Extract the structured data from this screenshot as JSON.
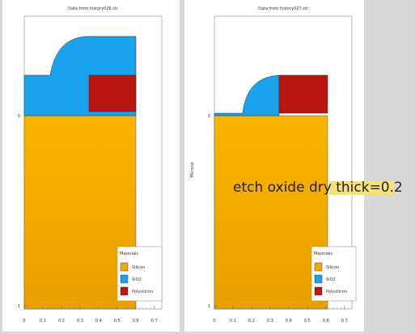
{
  "panels": [
    {
      "title": "Data from history026.str",
      "xticks": [
        "0",
        "0.1",
        "0.2",
        "0.3",
        "0.4",
        "0.5",
        "0.6",
        "0.7"
      ],
      "yticks": [
        "0",
        "1"
      ],
      "legend": {
        "title": "Materials",
        "items": [
          "Silicon",
          "SiO2",
          "Polysilicon"
        ]
      }
    },
    {
      "title": "Data from history027.str",
      "ylabel": "Microns",
      "xticks": [
        "0",
        "0.1",
        "0.2",
        "0.3",
        "0.4",
        "0.5",
        "0.6",
        "0.7"
      ],
      "yticks": [
        "0",
        "1"
      ],
      "legend": {
        "title": "Materials",
        "items": [
          "Silicon",
          "SiO2",
          "Polysilicon"
        ]
      }
    }
  ],
  "annotation": "etch oxide dry thick=0.2"
}
